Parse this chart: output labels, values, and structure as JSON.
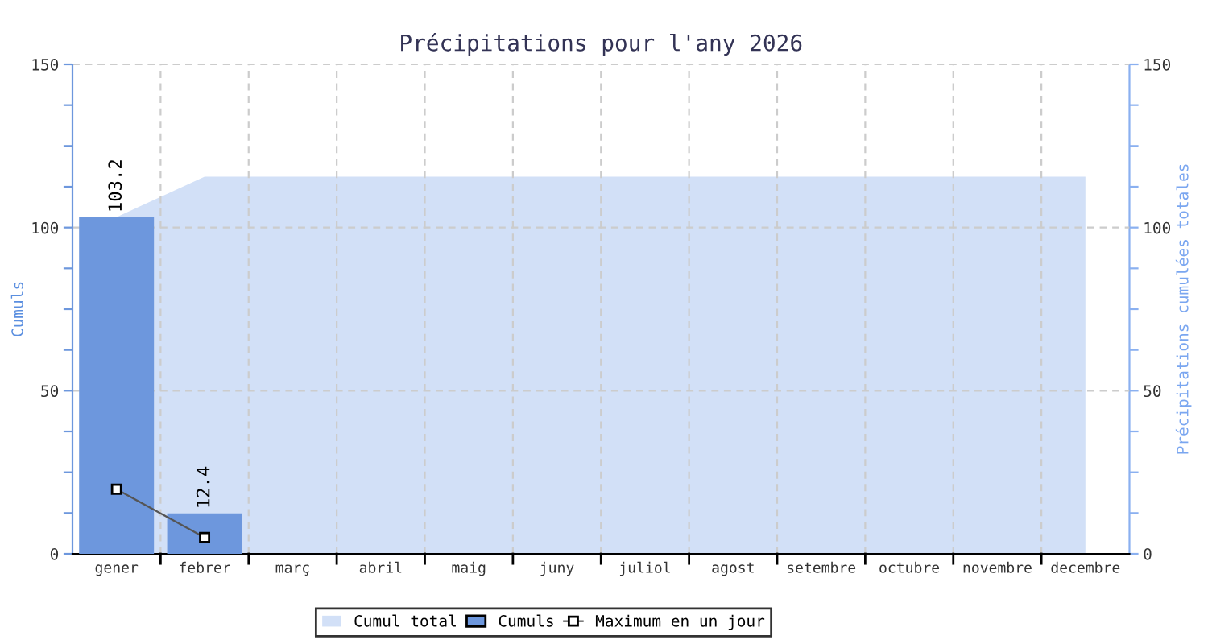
{
  "chart_data": {
    "type": "bar",
    "title": "Précipitations pour l'any 2026",
    "ylabel": "Cumuls",
    "y2label": "Précipitations cumulées totales",
    "categories": [
      "gener",
      "febrer",
      "març",
      "abril",
      "maig",
      "juny",
      "juliol",
      "agost",
      "setembre",
      "octubre",
      "novembre",
      "decembre"
    ],
    "series": [
      {
        "name": "Cumul total",
        "type": "area",
        "axis": "y2",
        "color": "#d2e0f7",
        "values": [
          103.2,
          115.6,
          115.6,
          115.6,
          115.6,
          115.6,
          115.6,
          115.6,
          115.6,
          115.6,
          115.6,
          115.6
        ]
      },
      {
        "name": "Cumuls",
        "color": "#6d97dd",
        "values": [
          103.2,
          12.4,
          null,
          null,
          null,
          null,
          null,
          null,
          null,
          null,
          null,
          null
        ],
        "data_labels": true
      },
      {
        "name": "Maximum en un jour",
        "type": "line",
        "color": "#555555",
        "marker": "square",
        "values": [
          19.8,
          5.0,
          null,
          null,
          null,
          null,
          null,
          null,
          null,
          null,
          null,
          null
        ]
      }
    ],
    "ylim": [
      0,
      150
    ],
    "yticks": [
      0,
      {
        "value": 12.5,
        "label": null
      },
      {
        "value": 25,
        "label": null
      },
      {
        "value": 37.5,
        "label": null
      },
      50,
      {
        "value": 62.5,
        "label": null
      },
      {
        "value": 75,
        "label": null
      },
      {
        "value": 87.5,
        "label": null
      },
      100,
      {
        "value": 112.5,
        "label": null
      },
      {
        "value": 125,
        "label": null
      },
      {
        "value": 137.5,
        "label": null
      },
      150
    ],
    "y2lim": [
      0,
      150
    ],
    "y2ticks": [
      0,
      {
        "value": 12.5,
        "label": null
      },
      {
        "value": 25,
        "label": null
      },
      {
        "value": 37.5,
        "label": null
      },
      50,
      {
        "value": 62.5,
        "label": null
      },
      {
        "value": 75,
        "label": null
      },
      {
        "value": 87.5,
        "label": null
      },
      100,
      {
        "value": 112.5,
        "label": null
      },
      {
        "value": 125,
        "label": null
      },
      {
        "value": 137.5,
        "label": null
      },
      150
    ],
    "grid": true,
    "legend": "bottom"
  }
}
